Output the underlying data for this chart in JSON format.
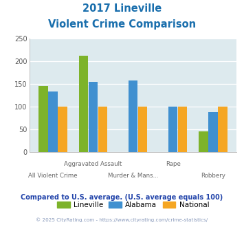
{
  "title_line1": "2017 Lineville",
  "title_line2": "Violent Crime Comparison",
  "categories": [
    "All Violent Crime",
    "Aggravated Assault",
    "Murder & Mans...",
    "Rape",
    "Robbery"
  ],
  "lineville": [
    145,
    212,
    0,
    0,
    46
  ],
  "alabama": [
    133,
    155,
    158,
    100,
    88
  ],
  "national": [
    100,
    100,
    100,
    100,
    100
  ],
  "color_lineville": "#7db32a",
  "color_alabama": "#4090d0",
  "color_national": "#f5a623",
  "ylim": [
    0,
    250
  ],
  "yticks": [
    0,
    50,
    100,
    150,
    200,
    250
  ],
  "background_color": "#ddeaee",
  "title_color": "#1a6fad",
  "footer_text": "Compared to U.S. average. (U.S. average equals 100)",
  "copyright_text": "© 2025 CityRating.com - https://www.cityrating.com/crime-statistics/",
  "footer_color": "#2244aa",
  "copyright_color": "#8899bb"
}
